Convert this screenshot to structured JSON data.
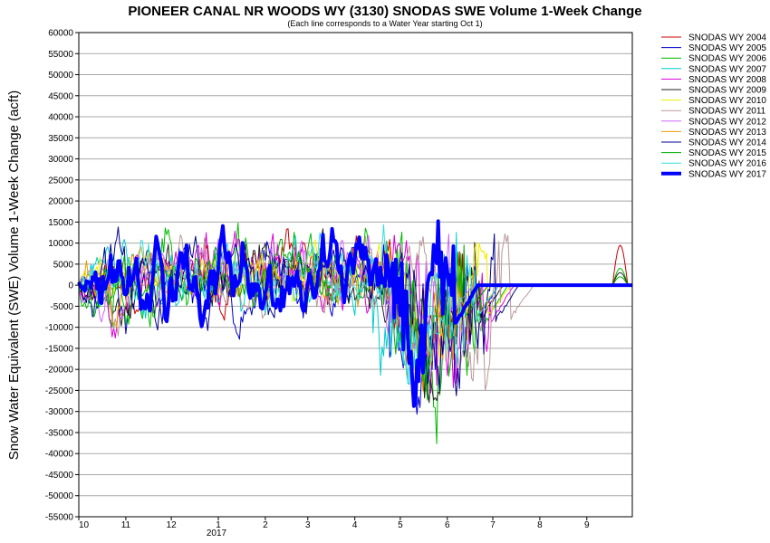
{
  "chart_data": {
    "type": "line",
    "title": "PIONEER CANAL NR WOODS WY (3130) SNODAS SWE Volume 1-Week Change",
    "subtitle": "(Each line corresponds to a Water Year starting Oct 1)",
    "ylabel": "Snow Water Equivalent (SWE) Volume 1-Week Change (acft)",
    "xlabel": "",
    "ylim": [
      -55000,
      60000
    ],
    "yticks": [
      60000,
      55000,
      50000,
      45000,
      40000,
      35000,
      30000,
      25000,
      20000,
      15000,
      10000,
      5000,
      0,
      -5000,
      -10000,
      -15000,
      -20000,
      -25000,
      -30000,
      -35000,
      -40000,
      -45000,
      -50000,
      -55000
    ],
    "ytick_labels": [
      "60000",
      "55000",
      "50000",
      "45000",
      "40000",
      "35000",
      "30000",
      "25000",
      "20000",
      "15000",
      "10000",
      "5000",
      "0",
      "-5000",
      "-10000",
      "-15000",
      "-20000",
      "-25000",
      "-30000",
      "-35000",
      "-40000",
      "-45000",
      "-50000",
      "-55000"
    ],
    "xlim": [
      0,
      365
    ],
    "xticks": [
      0,
      31,
      61,
      92,
      123,
      151,
      182,
      212,
      243,
      273,
      304,
      335
    ],
    "xtick_labels": [
      "10",
      "11",
      "12",
      "1",
      "2",
      "3",
      "4",
      "5",
      "6",
      "7",
      "8",
      "9"
    ],
    "year_label": "2017",
    "grid": true,
    "legend_position": "right",
    "series": [
      {
        "name": "SNODAS WY 2004",
        "color": "#cc0000",
        "width": 1,
        "seed": 11,
        "amp": 12000,
        "melt": [
          205,
          255
        ],
        "late": 9500
      },
      {
        "name": "SNODAS WY 2005",
        "color": "#0000cc",
        "width": 1,
        "seed": 23,
        "amp": 14000,
        "melt": [
          200,
          262
        ],
        "late": 0
      },
      {
        "name": "SNODAS WY 2006",
        "color": "#00bb00",
        "width": 1,
        "seed": 37,
        "amp": 15000,
        "melt": [
          205,
          268
        ],
        "late": 4000
      },
      {
        "name": "SNODAS WY 2007",
        "color": "#00cccc",
        "width": 1,
        "seed": 41,
        "amp": 13000,
        "melt": [
          190,
          250
        ],
        "late": 0
      },
      {
        "name": "SNODAS WY 2008",
        "color": "#dd00dd",
        "width": 1,
        "seed": 53,
        "amp": 14000,
        "melt": [
          215,
          272
        ],
        "late": 0
      },
      {
        "name": "SNODAS WY 2009",
        "color": "#222222",
        "width": 1,
        "seed": 67,
        "amp": 13000,
        "melt": [
          205,
          265
        ],
        "late": 3000
      },
      {
        "name": "SNODAS WY 2010",
        "color": "#eeee00",
        "width": 1,
        "seed": 71,
        "amp": 12000,
        "melt": [
          210,
          270
        ],
        "late": 0
      },
      {
        "name": "SNODAS WY 2011",
        "color": "#bb9999",
        "width": 1,
        "seed": 83,
        "amp": 13000,
        "melt": [
          230,
          285
        ],
        "late": 0
      },
      {
        "name": "SNODAS WY 2012",
        "color": "#cc66ff",
        "width": 1,
        "seed": 97,
        "amp": 11000,
        "melt": [
          185,
          245
        ],
        "late": 0
      },
      {
        "name": "SNODAS WY 2013",
        "color": "#ee9900",
        "width": 1,
        "seed": 101,
        "amp": 12000,
        "melt": [
          205,
          262
        ],
        "late": 0
      },
      {
        "name": "SNODAS WY 2014",
        "color": "#000088",
        "width": 1,
        "seed": 113,
        "amp": 14000,
        "melt": [
          215,
          275
        ],
        "late": 0
      },
      {
        "name": "SNODAS WY 2015",
        "color": "#00aa00",
        "width": 1,
        "seed": 127,
        "amp": 12000,
        "melt": [
          195,
          255
        ],
        "late": 2000
      },
      {
        "name": "SNODAS WY 2016",
        "color": "#33dddd",
        "width": 1,
        "seed": 131,
        "amp": 13000,
        "melt": [
          200,
          262
        ],
        "late": 0
      },
      {
        "name": "SNODAS WY 2017",
        "color": "#0000ff",
        "width": 4,
        "seed": 149,
        "amp": 16000,
        "melt": [
          205,
          248
        ],
        "late": 0
      }
    ]
  }
}
